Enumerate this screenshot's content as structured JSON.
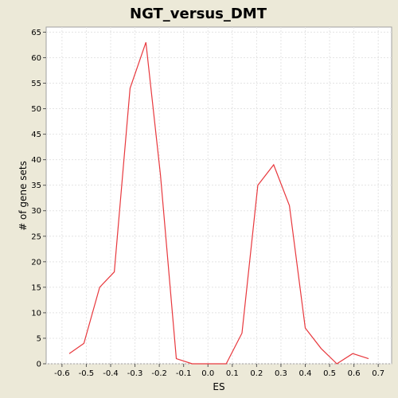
{
  "chart_data": {
    "type": "line",
    "title": "NGT_versus_DMT",
    "xlabel": "ES",
    "ylabel": "# of gene sets",
    "xlim": [
      -0.665,
      0.755
    ],
    "ylim": [
      0,
      66
    ],
    "x_ticks": [
      "-0.6",
      "-0.5",
      "-0.4",
      "-0.3",
      "-0.2",
      "-0.1",
      "0.0",
      "0.1",
      "0.2",
      "0.3",
      "0.4",
      "0.5",
      "0.6",
      "0.7"
    ],
    "y_ticks": [
      "0",
      "5",
      "10",
      "15",
      "20",
      "25",
      "30",
      "35",
      "40",
      "45",
      "50",
      "55",
      "60",
      "65"
    ],
    "grid": true,
    "series": [
      {
        "color": "#e8383d",
        "x": [
          -0.57,
          -0.51,
          -0.445,
          -0.385,
          -0.32,
          -0.255,
          -0.195,
          -0.13,
          -0.065,
          0.0,
          0.075,
          0.14,
          0.205,
          0.27,
          0.335,
          0.4,
          0.465,
          0.53,
          0.595,
          0.66
        ],
        "y": [
          2,
          4,
          15,
          18,
          54,
          63,
          37,
          1,
          0,
          0,
          0,
          6,
          35,
          39,
          31,
          7,
          3,
          0,
          2,
          1
        ]
      }
    ]
  },
  "colors": {
    "background": "#ece9d8",
    "plot_background": "#ffffff",
    "grid": "#e4e4e4",
    "line": "#e8383d"
  }
}
